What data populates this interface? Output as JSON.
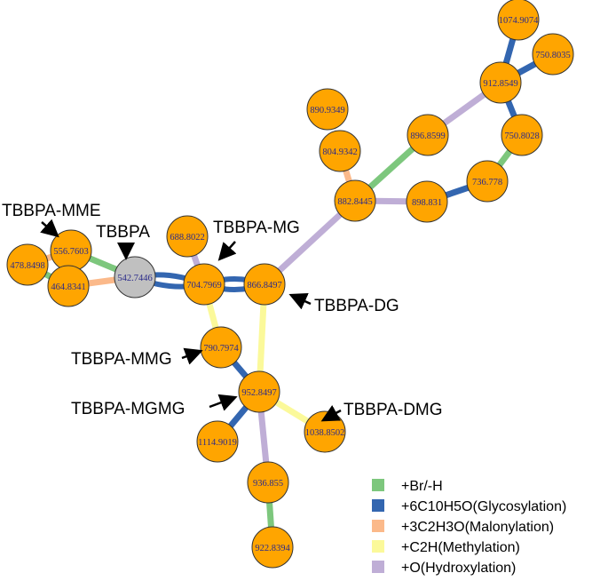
{
  "edge_types": {
    "br": {
      "label": "+Br/-H",
      "color": "#7dc77d"
    },
    "gly": {
      "label": "+6C10H5O(Glycosylation)",
      "color": "#3366b0"
    },
    "mal": {
      "label": "+3C2H3O(Malonylation)",
      "color": "#fbb98a"
    },
    "met": {
      "label": "+C2H(Methylation)",
      "color": "#fbf99a"
    },
    "hyd": {
      "label": "+O(Hydroxylation)",
      "color": "#bfaed6"
    }
  },
  "legend_order": [
    "br",
    "gly",
    "mal",
    "met",
    "hyd"
  ],
  "node_fill": "#ffa500",
  "parent_fill": "#c0c0c0",
  "nodes": [
    {
      "id": "1074.9074"
    },
    {
      "id": "750.8035"
    },
    {
      "id": "912.8549"
    },
    {
      "id": "896.8599"
    },
    {
      "id": "750.8028"
    },
    {
      "id": "890.9349"
    },
    {
      "id": "804.9342"
    },
    {
      "id": "736.778"
    },
    {
      "id": "882.8445"
    },
    {
      "id": "898.831"
    },
    {
      "id": "478.8498"
    },
    {
      "id": "556.7603"
    },
    {
      "id": "464.8341"
    },
    {
      "id": "542.7446",
      "parent": true
    },
    {
      "id": "688.8022"
    },
    {
      "id": "704.7969"
    },
    {
      "id": "866.8497"
    },
    {
      "id": "790.7974"
    },
    {
      "id": "952.8497"
    },
    {
      "id": "1114.9019"
    },
    {
      "id": "1038.8502"
    },
    {
      "id": "936.855"
    },
    {
      "id": "922.8394"
    }
  ],
  "edges": [
    [
      "1074.9074",
      "912.8549",
      "gly"
    ],
    [
      "750.8035",
      "912.8549",
      "gly"
    ],
    [
      "912.8549",
      "896.8599",
      "hyd"
    ],
    [
      "912.8549",
      "750.8028",
      "gly"
    ],
    [
      "750.8028",
      "736.778",
      "br"
    ],
    [
      "736.778",
      "898.831",
      "gly"
    ],
    [
      "898.831",
      "882.8445",
      "hyd"
    ],
    [
      "882.8445",
      "896.8599",
      "br"
    ],
    [
      "882.8445",
      "804.9342",
      "mal"
    ],
    [
      "882.8445",
      "866.8497",
      "hyd"
    ],
    [
      "866.8497",
      "704.7969",
      "gly"
    ],
    [
      "704.7969",
      "542.7446",
      "gly"
    ],
    [
      "542.7446",
      "556.7603",
      "br"
    ],
    [
      "542.7446",
      "464.8341",
      "mal"
    ],
    [
      "478.8498",
      "556.7603",
      "mal"
    ],
    [
      "478.8498",
      "464.8341",
      "br"
    ],
    [
      "688.8022",
      "704.7969",
      "hyd"
    ],
    [
      "704.7969",
      "790.7974",
      "met"
    ],
    [
      "866.8497",
      "952.8497",
      "met"
    ],
    [
      "790.7974",
      "952.8497",
      "gly"
    ],
    [
      "952.8497",
      "1114.9019",
      "gly"
    ],
    [
      "952.8497",
      "1038.8502",
      "met"
    ],
    [
      "952.8497",
      "936.855",
      "hyd"
    ],
    [
      "936.855",
      "922.8394",
      "br"
    ]
  ],
  "annotations": [
    {
      "text": "TBBPA-MME",
      "node": "556.7603"
    },
    {
      "text": "TBBPA",
      "node": "542.7446"
    },
    {
      "text": "TBBPA-MG",
      "node": "704.7969"
    },
    {
      "text": "TBBPA-DG",
      "node": "866.8497"
    },
    {
      "text": "TBBPA-MMG",
      "node": "790.7974"
    },
    {
      "text": "TBBPA-MGMG",
      "node": "952.8497"
    },
    {
      "text": "TBBPA-DMG",
      "node": "1038.8502"
    }
  ]
}
